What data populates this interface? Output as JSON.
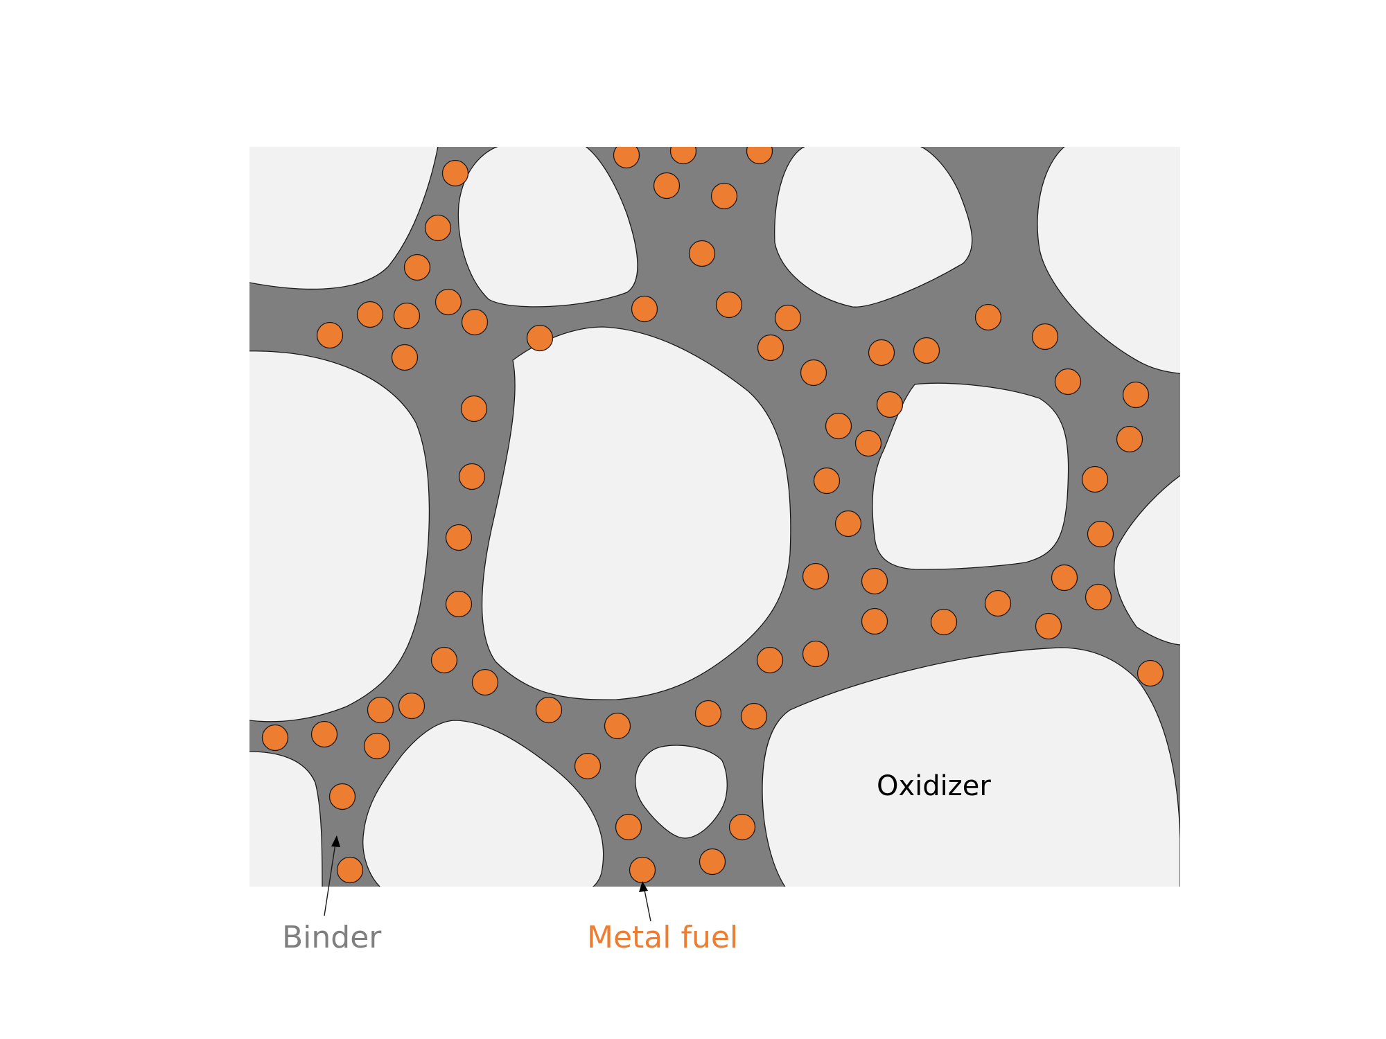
{
  "colors": {
    "background": "#ffffff",
    "binder": "#7f7f7f",
    "oxidizer": "#f2f2f2",
    "metal_fuel": "#ed7d31",
    "outline": "#1a1a1a",
    "oxidizer_label": "#000000"
  },
  "labels": {
    "binder": "Binder",
    "metal_fuel": "Metal fuel",
    "oxidizer": "Oxidizer"
  }
}
